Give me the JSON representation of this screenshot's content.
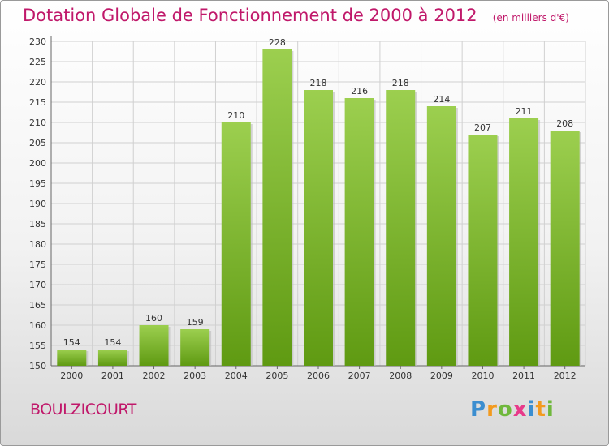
{
  "header": {
    "title": "Dotation Globale de Fonctionnement de 2000 à 2012",
    "subtitle": "(en milliers d'€)"
  },
  "footer": {
    "commune": "BOULZICOURT",
    "logo_text": "Proxiti"
  },
  "colors": {
    "title": "#c0186a",
    "bar_light": "#9ccf4f",
    "bar_dark": "#5f9a12"
  },
  "chart_data": {
    "type": "bar",
    "title": "Dotation Globale de Fonctionnement de 2000 à 2012",
    "subtitle": "(en milliers d'€)",
    "xlabel": "",
    "ylabel": "",
    "categories": [
      "2000",
      "2001",
      "2002",
      "2003",
      "2004",
      "2005",
      "2006",
      "2007",
      "2008",
      "2009",
      "2010",
      "2011",
      "2012"
    ],
    "values": [
      154,
      154,
      160,
      159,
      210,
      228,
      218,
      216,
      218,
      214,
      207,
      211,
      208
    ],
    "ylim": [
      150,
      230
    ],
    "yticks": [
      150,
      155,
      160,
      165,
      170,
      175,
      180,
      185,
      190,
      195,
      200,
      205,
      210,
      215,
      220,
      225,
      230
    ],
    "grid": true
  }
}
